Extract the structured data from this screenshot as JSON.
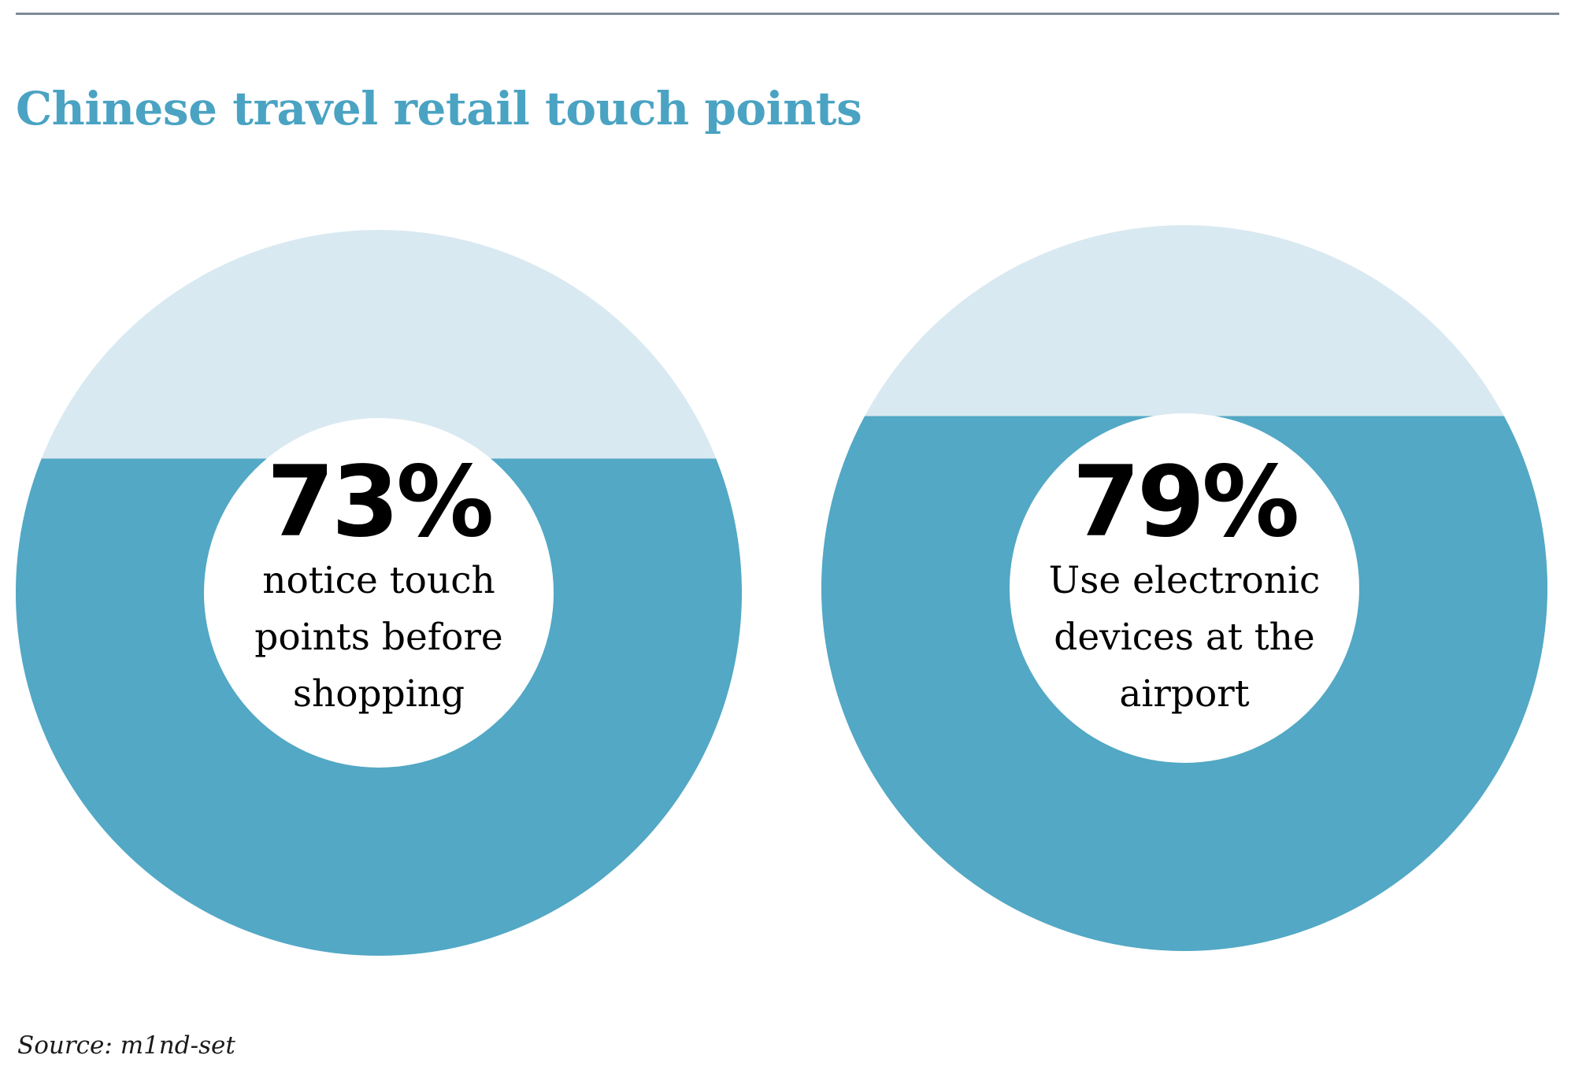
{
  "title": "Chinese travel retail touch points",
  "source": "Source: m1nd-set",
  "colors": {
    "title": "#4aa3c2",
    "filled": "#52a8c5",
    "remainder": "#d9e9f1",
    "rule": "#7e8a98"
  },
  "chart_data": [
    {
      "type": "pie",
      "value": 73,
      "max": 100,
      "value_label": "73%",
      "description": "notice touch points before shopping"
    },
    {
      "type": "pie",
      "value": 79,
      "max": 100,
      "value_label": "79%",
      "description": "Use electronic devices at the airport"
    }
  ]
}
